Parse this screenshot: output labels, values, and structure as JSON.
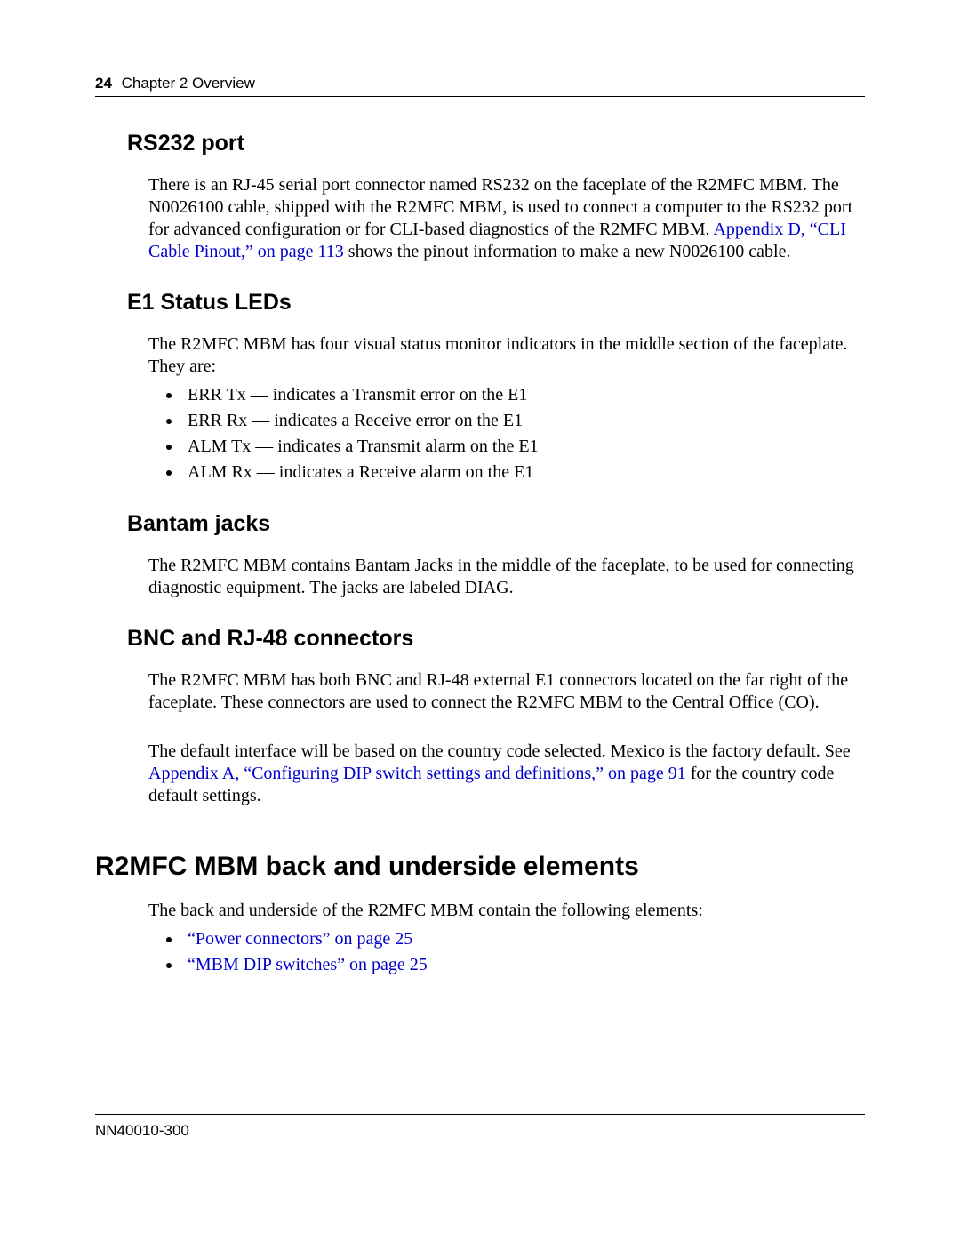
{
  "header": {
    "page_number": "24",
    "chapter": "Chapter 2  Overview"
  },
  "sections": {
    "rs232": {
      "title": "RS232 port",
      "p1a": "There is an RJ-45 serial port connector named RS232 on the faceplate of the R2MFC MBM. The N0026100 cable, shipped with the R2MFC MBM, is used to connect a computer to the RS232 port for advanced configuration or for CLI-based diagnostics of the R2MFC MBM. ",
      "link1": "Appendix D, “CLI Cable Pinout,” on page 113",
      "p1b": " shows the pinout information to make a new N0026100 cable."
    },
    "e1": {
      "title": "E1 Status LEDs",
      "intro": "The R2MFC MBM has four visual status monitor indicators in the middle section of the faceplate. They are:",
      "items": [
        "ERR Tx — indicates a Transmit error on the E1",
        "ERR Rx — indicates a Receive error on the E1",
        "ALM Tx — indicates a Transmit alarm on the E1",
        "ALM Rx — indicates a Receive alarm on the E1"
      ]
    },
    "bantam": {
      "title": "Bantam jacks",
      "p1": "The R2MFC MBM contains Bantam Jacks in the middle of the faceplate, to be used for connecting diagnostic equipment. The jacks are labeled DIAG."
    },
    "bnc": {
      "title": "BNC and RJ-48 connectors",
      "p1": "The R2MFC MBM has both BNC and RJ-48 external E1 connectors located on the far right of the faceplate. These connectors are used to connect the R2MFC MBM to the Central Office (CO).",
      "p2a": "The default interface will be based on the country code selected. Mexico is the factory default. See ",
      "link2": "Appendix A, “Configuring DIP switch settings and definitions,” on page 91",
      "p2b": " for the country code default settings."
    },
    "back": {
      "title": "R2MFC MBM back and underside elements",
      "intro": "The back and underside of the R2MFC MBM contain the following elements:",
      "links": [
        "“Power connectors” on page 25",
        "“MBM DIP switches” on page 25"
      ]
    }
  },
  "footer": {
    "doc_id": "NN40010-300"
  },
  "colors": {
    "link": "#0000cc",
    "text": "#000000",
    "rule": "#000000",
    "bg": "#ffffff"
  }
}
